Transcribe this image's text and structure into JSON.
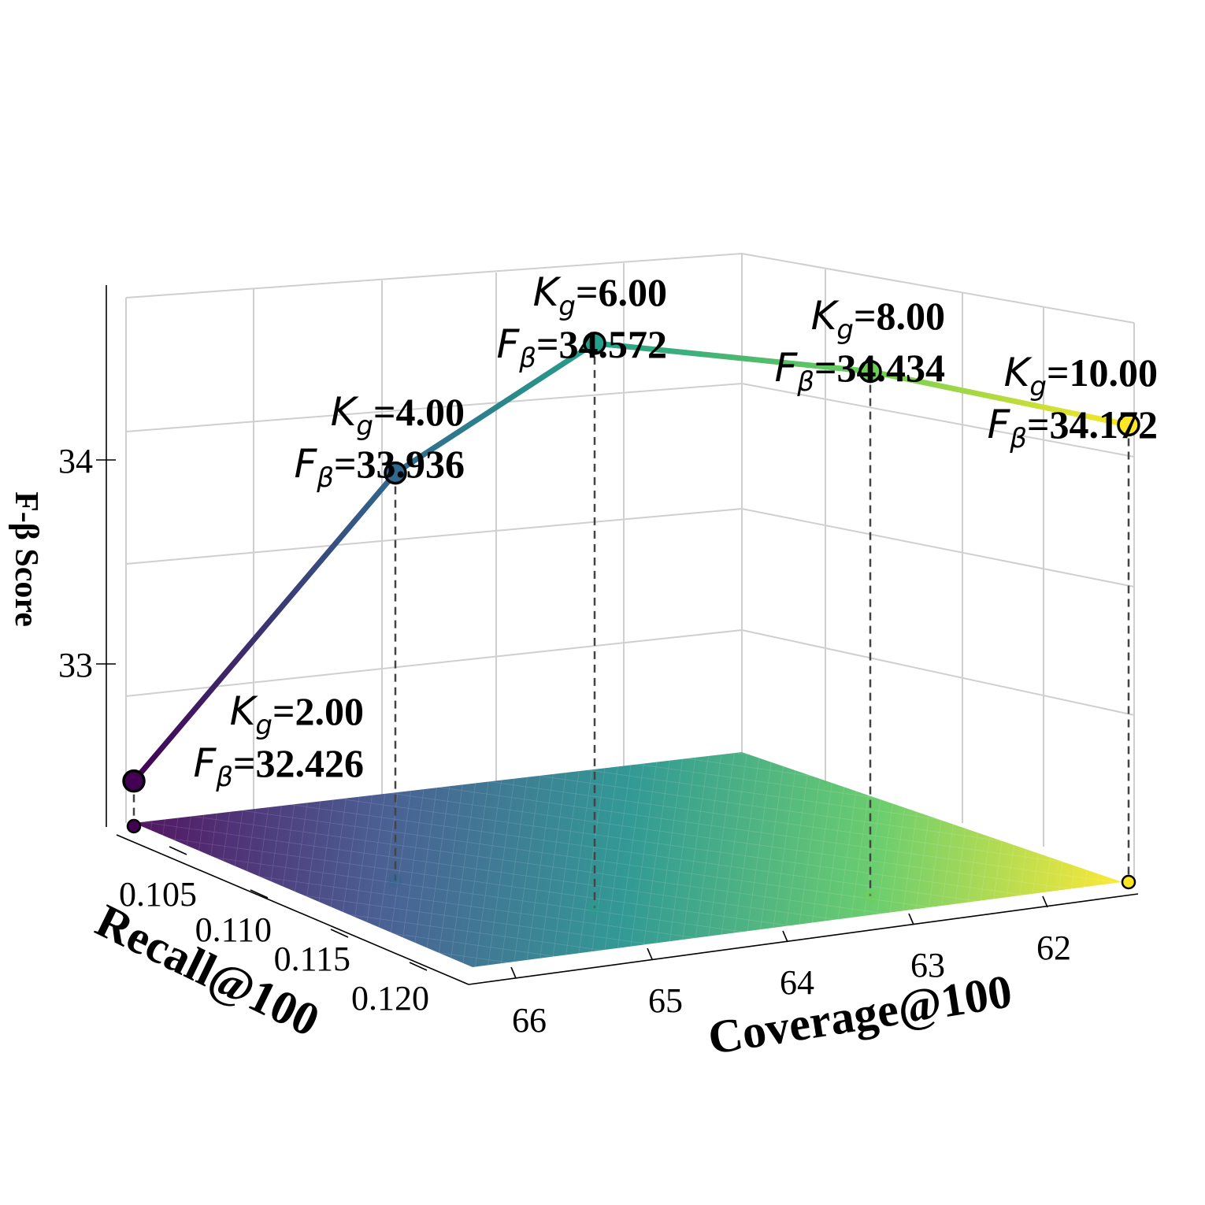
{
  "chart_data": {
    "type": "line3d",
    "xlabel": "Recall@100",
    "ylabel": "Coverage@100",
    "zlabel": "F-β Score",
    "x_ticks": [
      "0.105",
      "0.110",
      "0.115",
      "0.120"
    ],
    "y_ticks": [
      "66",
      "65",
      "64",
      "63",
      "62"
    ],
    "z_ticks": [
      "33",
      "34"
    ],
    "annotation_symbols": {
      "k": "K",
      "k_sub": "g",
      "f": "F",
      "f_sub": "β"
    },
    "points": [
      {
        "kg": "2.00",
        "fb": "32.426",
        "z": 32.426,
        "color": "#440154"
      },
      {
        "kg": "4.00",
        "fb": "33.936",
        "z": 33.936,
        "color": "#31688e"
      },
      {
        "kg": "6.00",
        "fb": "34.572",
        "z": 34.572,
        "color": "#26a08a"
      },
      {
        "kg": "8.00",
        "fb": "34.434",
        "z": 34.434,
        "color": "#6cce59"
      },
      {
        "kg": "10.00",
        "fb": "34.172",
        "z": 34.172,
        "color": "#fde725"
      }
    ],
    "colormap": "viridis",
    "grid": true
  }
}
